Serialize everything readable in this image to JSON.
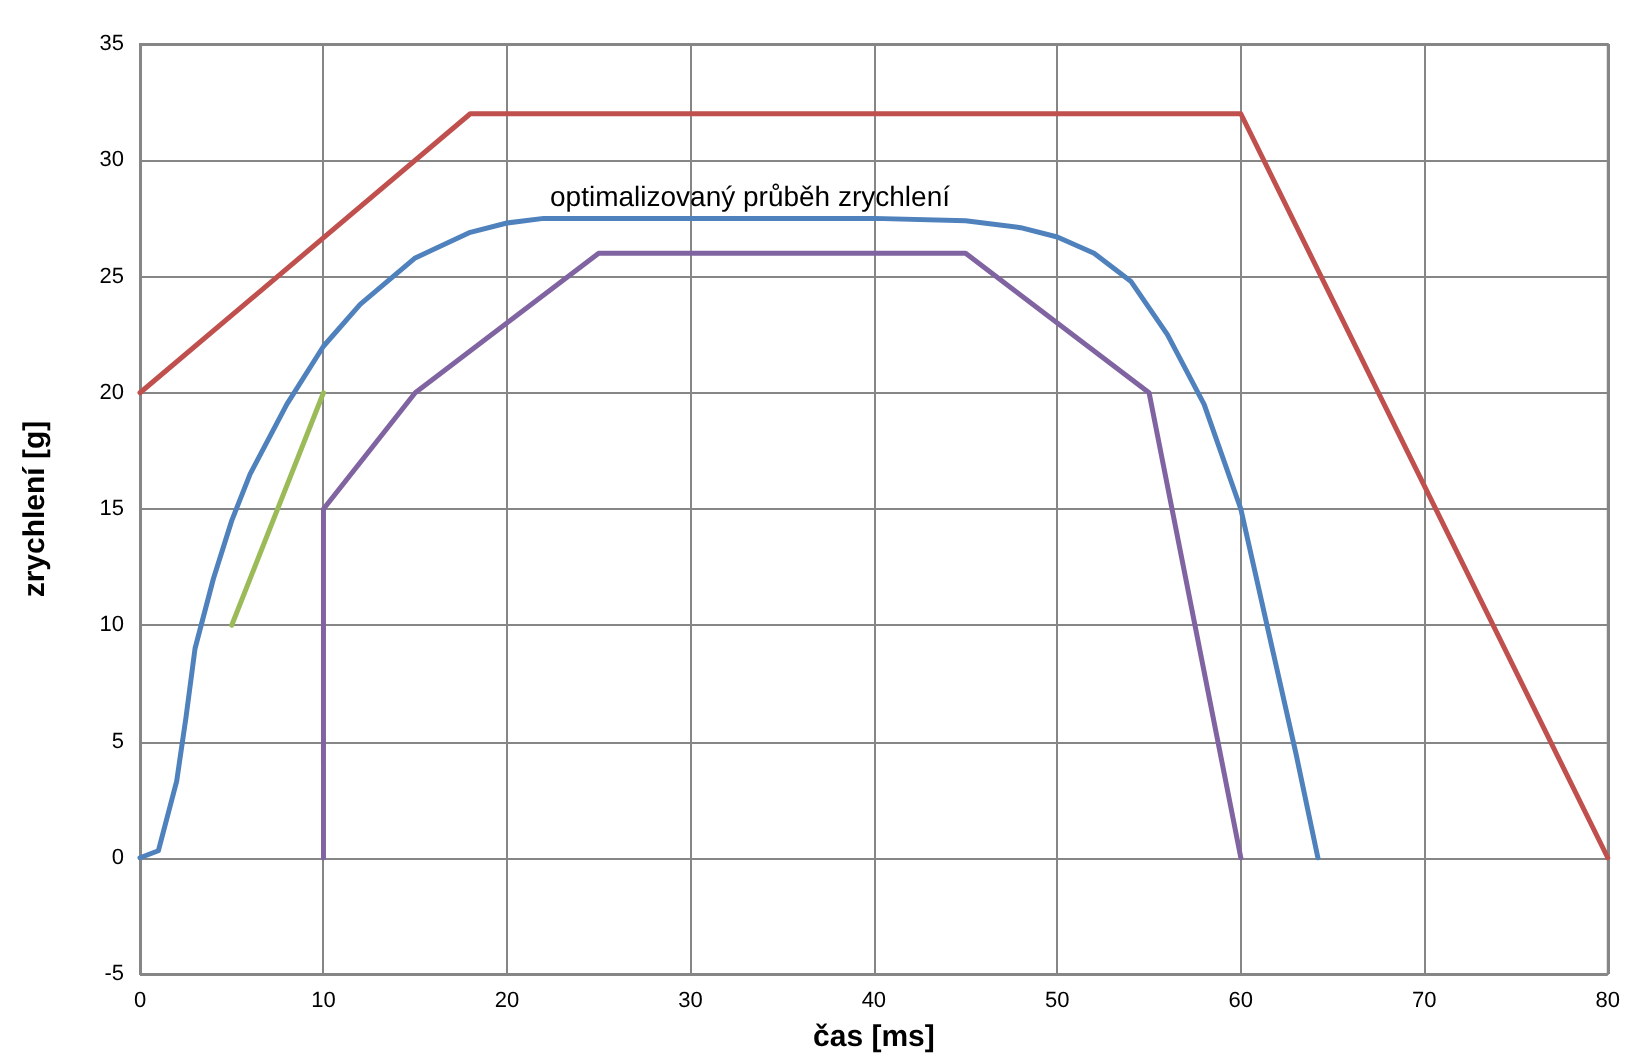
{
  "chart_data": {
    "type": "line",
    "xlabel": "čas [ms]",
    "ylabel": "zrychlení [g]",
    "xlim": [
      0,
      80
    ],
    "xticks": [
      0,
      10,
      20,
      30,
      40,
      50,
      60,
      70,
      80
    ],
    "ylim": [
      -5,
      35
    ],
    "yticks": [
      -5,
      0,
      5,
      10,
      15,
      20,
      25,
      30,
      35
    ],
    "grid": true,
    "marker": "none",
    "line_style": "solid",
    "annotations": [
      "optimalizovaný průběh zrychlení"
    ],
    "series": [
      {
        "color": "#c0504d",
        "x": [
          0,
          18,
          60,
          80
        ],
        "values": [
          20,
          32,
          32,
          0
        ]
      },
      {
        "color": "#4f81bd",
        "x": [
          0,
          1,
          2,
          2.5,
          3,
          4,
          5,
          6,
          8,
          10,
          12,
          15,
          18,
          20,
          22,
          30,
          40,
          45,
          48,
          50,
          52,
          54,
          56,
          58,
          60,
          62,
          63,
          64.2
        ],
        "values": [
          0,
          0.3,
          3.3,
          6,
          9,
          12,
          14.5,
          16.5,
          19.5,
          22,
          23.8,
          25.8,
          26.9,
          27.3,
          27.5,
          27.5,
          27.5,
          27.4,
          27.1,
          26.7,
          26,
          24.8,
          22.5,
          19.5,
          15,
          8,
          4.5,
          0
        ]
      },
      {
        "color": "#9bbb59",
        "x": [
          5,
          10
        ],
        "values": [
          10,
          20
        ]
      },
      {
        "color": "#8064a2",
        "x": [
          10,
          10,
          15,
          25,
          45,
          55,
          60
        ],
        "values": [
          0,
          15,
          20,
          26,
          26,
          20,
          0
        ]
      }
    ]
  }
}
